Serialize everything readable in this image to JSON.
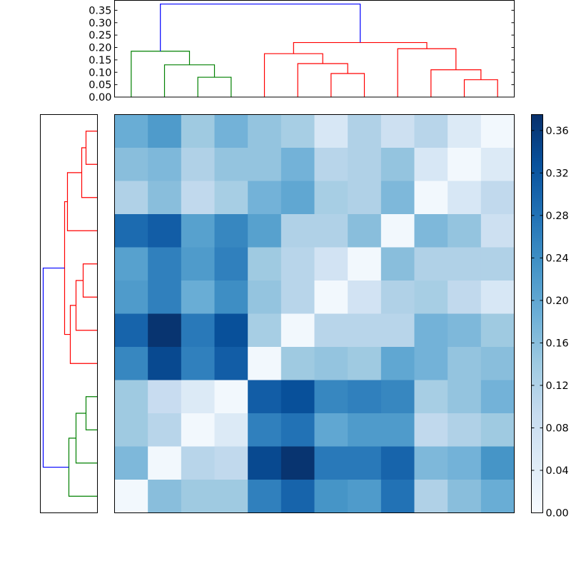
{
  "chart_data": [
    {
      "type": "heatmap",
      "title": "",
      "xlabel": "",
      "ylabel": "",
      "colormap": "Blues",
      "vmin": 0.0,
      "vmax": 0.375,
      "values": [
        [
          0.19,
          0.22,
          0.14,
          0.18,
          0.15,
          0.13,
          0.06,
          0.12,
          0.08,
          0.11,
          0.05,
          0.01
        ],
        [
          0.16,
          0.17,
          0.12,
          0.15,
          0.15,
          0.18,
          0.11,
          0.12,
          0.15,
          0.06,
          0.01,
          0.05
        ],
        [
          0.12,
          0.16,
          0.1,
          0.13,
          0.18,
          0.2,
          0.13,
          0.12,
          0.17,
          0.01,
          0.06,
          0.1
        ],
        [
          0.29,
          0.31,
          0.21,
          0.25,
          0.21,
          0.12,
          0.12,
          0.16,
          0.01,
          0.17,
          0.15,
          0.08
        ],
        [
          0.21,
          0.26,
          0.22,
          0.26,
          0.14,
          0.11,
          0.07,
          0.01,
          0.16,
          0.12,
          0.12,
          0.12
        ],
        [
          0.22,
          0.26,
          0.19,
          0.24,
          0.15,
          0.11,
          0.01,
          0.07,
          0.12,
          0.13,
          0.1,
          0.06
        ],
        [
          0.3,
          0.37,
          0.27,
          0.33,
          0.13,
          0.01,
          0.11,
          0.11,
          0.11,
          0.18,
          0.17,
          0.14
        ],
        [
          0.25,
          0.34,
          0.26,
          0.31,
          0.01,
          0.14,
          0.15,
          0.14,
          0.2,
          0.18,
          0.15,
          0.16
        ],
        [
          0.14,
          0.09,
          0.05,
          0.01,
          0.31,
          0.33,
          0.25,
          0.26,
          0.25,
          0.13,
          0.15,
          0.18
        ],
        [
          0.14,
          0.11,
          0.01,
          0.05,
          0.26,
          0.28,
          0.2,
          0.22,
          0.22,
          0.1,
          0.12,
          0.14
        ],
        [
          0.17,
          0.01,
          0.11,
          0.1,
          0.34,
          0.37,
          0.27,
          0.27,
          0.3,
          0.17,
          0.18,
          0.23
        ],
        [
          0.01,
          0.16,
          0.14,
          0.14,
          0.26,
          0.3,
          0.23,
          0.22,
          0.28,
          0.12,
          0.16,
          0.19
        ]
      ]
    },
    {
      "type": "dendrogram",
      "orientation": "top",
      "ylim": [
        0,
        0.39
      ],
      "yticks": [
        "0.00",
        "0.05",
        "0.10",
        "0.15",
        "0.20",
        "0.25",
        "0.30",
        "0.35"
      ],
      "n_leaves": 12,
      "colors": {
        "green": "#008000",
        "red": "#ff0000",
        "blue": "#0000ff"
      },
      "merges": [
        {
          "left": 2,
          "right": 3,
          "height": 0.08,
          "color": "green"
        },
        {
          "left": 1,
          "right": {
            "merge": 0
          },
          "height": 0.13,
          "color": "green"
        },
        {
          "left": 0,
          "right": {
            "merge": 1
          },
          "height": 0.185,
          "color": "green"
        },
        {
          "left": 6,
          "right": 7,
          "height": 0.095,
          "color": "red"
        },
        {
          "left": 5,
          "right": {
            "merge": 3
          },
          "height": 0.135,
          "color": "red"
        },
        {
          "left": 4,
          "right": {
            "merge": 4
          },
          "height": 0.175,
          "color": "red"
        },
        {
          "left": 10,
          "right": 11,
          "height": 0.07,
          "color": "red"
        },
        {
          "left": 9,
          "right": {
            "merge": 6
          },
          "height": 0.11,
          "color": "red"
        },
        {
          "left": 8,
          "right": {
            "merge": 7
          },
          "height": 0.195,
          "color": "red"
        },
        {
          "left": {
            "merge": 5
          },
          "right": {
            "merge": 8
          },
          "height": 0.22,
          "color": "red"
        },
        {
          "left": {
            "merge": 2
          },
          "right": {
            "merge": 9
          },
          "height": 0.375,
          "color": "blue"
        }
      ]
    },
    {
      "type": "dendrogram",
      "orientation": "left",
      "n_leaves": 12,
      "colors": {
        "green": "#008000",
        "red": "#ff0000",
        "blue": "#0000ff"
      },
      "merges": [
        {
          "left": 0,
          "right": 1,
          "height": 0.04,
          "color": "red"
        },
        {
          "left": 2,
          "right": {
            "merge": 0
          },
          "height": 0.055,
          "color": "red"
        },
        {
          "left": 3,
          "right": {
            "merge": 1
          },
          "height": 0.105,
          "color": "red"
        },
        {
          "left": 4,
          "right": 5,
          "height": 0.05,
          "color": "red"
        },
        {
          "left": {
            "merge": 3
          },
          "right": 6,
          "height": 0.075,
          "color": "red"
        },
        {
          "left": {
            "merge": 4
          },
          "right": 7,
          "height": 0.095,
          "color": "red"
        },
        {
          "left": {
            "merge": 2
          },
          "right": {
            "merge": 5
          },
          "height": 0.115,
          "color": "red"
        },
        {
          "left": 8,
          "right": 9,
          "height": 0.04,
          "color": "green"
        },
        {
          "left": {
            "merge": 7
          },
          "right": 10,
          "height": 0.075,
          "color": "green"
        },
        {
          "left": {
            "merge": 8
          },
          "right": 11,
          "height": 0.1,
          "color": "green"
        },
        {
          "left": {
            "merge": 6
          },
          "right": {
            "merge": 9
          },
          "height": 0.19,
          "color": "blue"
        }
      ],
      "xmax": 0.2
    },
    {
      "type": "colorbar",
      "vmin": 0.0,
      "vmax": 0.375,
      "ticks": [
        "0.00",
        "0.04",
        "0.08",
        "0.12",
        "0.16",
        "0.20",
        "0.24",
        "0.28",
        "0.32",
        "0.36"
      ]
    }
  ]
}
